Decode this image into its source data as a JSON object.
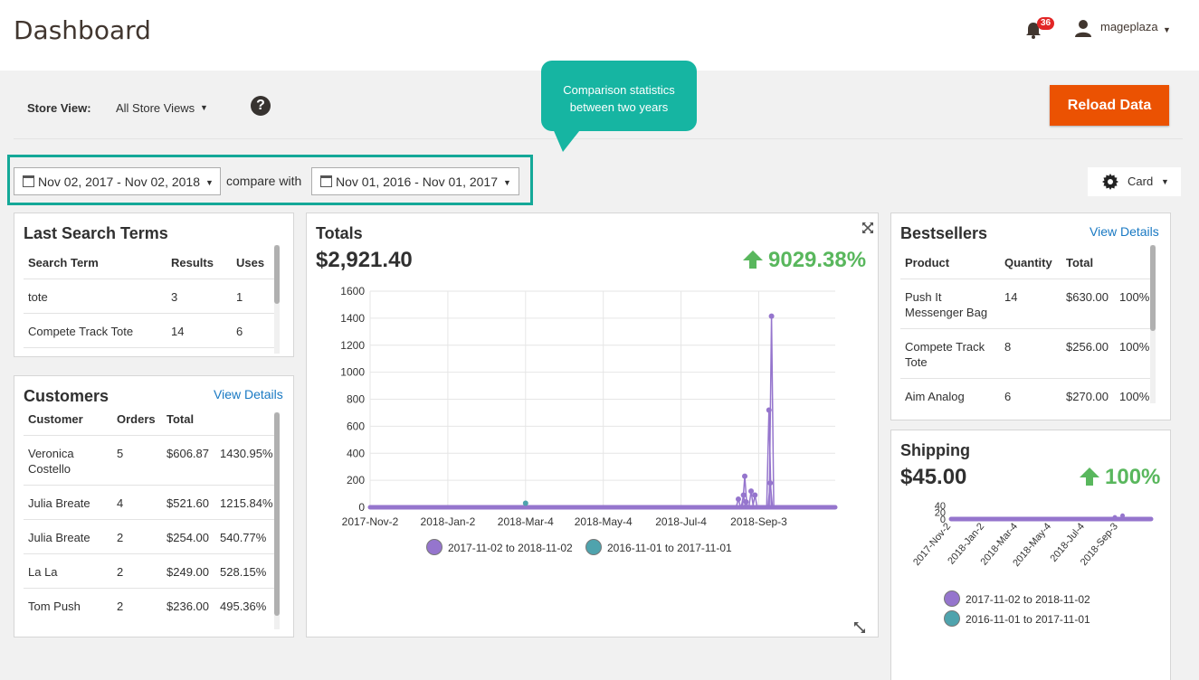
{
  "header": {
    "title": "Dashboard",
    "notification_count": "36",
    "user_name": "mageplaza"
  },
  "store_switcher": {
    "label": "Store View:",
    "value": "All Store Views",
    "help": "?"
  },
  "reload_label": "Reload Data",
  "tooltip": {
    "line1": "Comparison statistics",
    "line2": "between two years"
  },
  "date_range": {
    "primary": "Nov 02, 2017 - Nov 02, 2018",
    "compare_label": "compare with",
    "secondary": "Nov 01, 2016 - Nov 01, 2017"
  },
  "view_mode": {
    "label": "Card"
  },
  "search_terms": {
    "title": "Last Search Terms",
    "columns": [
      "Search Term",
      "Results",
      "Uses"
    ],
    "rows": [
      [
        "tote",
        "3",
        "1"
      ],
      [
        "Compete Track Tote",
        "14",
        "6"
      ]
    ]
  },
  "customers": {
    "title": "Customers",
    "view_details": "View Details",
    "columns": [
      "Customer",
      "Orders",
      "Total"
    ],
    "rows": [
      [
        "Veronica Costello",
        "5",
        "$606.87",
        "1430.95%"
      ],
      [
        "Julia Breate",
        "4",
        "$521.60",
        "1215.84%"
      ],
      [
        "Julia Breate",
        "2",
        "$254.00",
        "540.77%"
      ],
      [
        "La La",
        "2",
        "$249.00",
        "528.15%"
      ],
      [
        "Tom Push",
        "2",
        "$236.00",
        "495.36%"
      ]
    ]
  },
  "totals": {
    "title": "Totals",
    "value": "$2,921.40",
    "change": "9029.38%"
  },
  "bestsellers": {
    "title": "Bestsellers",
    "view_details": "View Details",
    "columns": [
      "Product",
      "Quantity",
      "Total"
    ],
    "rows": [
      [
        "Push It Messenger Bag",
        "14",
        "$630.00",
        "100%"
      ],
      [
        "Compete Track Tote",
        "8",
        "$256.00",
        "100%"
      ],
      [
        "Aim Analog",
        "6",
        "$270.00",
        "100%"
      ]
    ]
  },
  "shipping": {
    "title": "Shipping",
    "value": "$45.00",
    "change": "100%"
  },
  "colors": {
    "primary_series": "#9575cd",
    "compare_series": "#4fa3ad",
    "positive": "#59b75d",
    "accent": "#eb5202",
    "highlight": "#14a898"
  },
  "chart_data": [
    {
      "type": "line",
      "title": "Totals",
      "x_ticks": [
        "2017-Nov-2",
        "2018-Jan-2",
        "2018-Mar-4",
        "2018-May-4",
        "2018-Jul-4",
        "2018-Sep-3"
      ],
      "ylim": [
        0,
        1600
      ],
      "y_ticks": [
        0,
        200,
        400,
        600,
        800,
        1000,
        1200,
        1400,
        1600
      ],
      "grid": true,
      "legend": "bottom",
      "series": [
        {
          "name": "2017-11-02 to 2018-11-02",
          "points": [
            {
              "x": "2018-Aug-18",
              "y": 60
            },
            {
              "x": "2018-Aug-22",
              "y": 90
            },
            {
              "x": "2018-Aug-23",
              "y": 230
            },
            {
              "x": "2018-Aug-24",
              "y": 40
            },
            {
              "x": "2018-Aug-28",
              "y": 120
            },
            {
              "x": "2018-Aug-31",
              "y": 90
            },
            {
              "x": "2018-Sep-11",
              "y": 720
            },
            {
              "x": "2018-Sep-12",
              "y": 180
            },
            {
              "x": "2018-Sep-13",
              "y": 1415
            }
          ]
        },
        {
          "name": "2016-11-01 to 2017-11-01",
          "points": [
            {
              "x": "2018-Mar-4",
              "y": 30
            }
          ]
        }
      ]
    },
    {
      "type": "line",
      "title": "Shipping",
      "x_ticks": [
        "2017-Nov-2",
        "2018-Jan-2",
        "2018-Mar-4",
        "2018-May-4",
        "2018-Jul-4",
        "2018-Sep-3"
      ],
      "ylim": [
        0,
        40
      ],
      "y_ticks": [
        0,
        20,
        40
      ],
      "grid": false,
      "legend": "bottom",
      "series": [
        {
          "name": "2017-11-02 to 2018-11-02",
          "points": [
            {
              "x": "2018-Aug-28",
              "y": 5
            },
            {
              "x": "2018-Sep-11",
              "y": 10
            }
          ]
        },
        {
          "name": "2016-11-01 to 2017-11-01",
          "points": []
        }
      ]
    }
  ]
}
